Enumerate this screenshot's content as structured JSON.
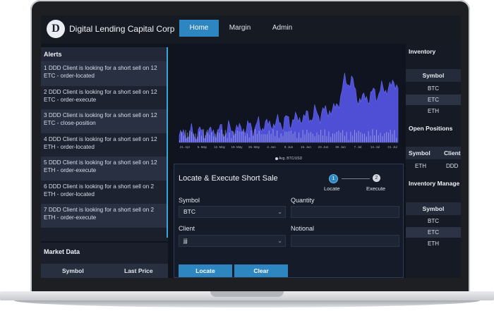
{
  "app": {
    "brand_initial": "D",
    "brand_name": "Digital Lending Capital Corp"
  },
  "nav": {
    "tabs": [
      {
        "label": "Home",
        "active": true
      },
      {
        "label": "Margin",
        "active": false
      },
      {
        "label": "Admin",
        "active": false
      }
    ]
  },
  "alerts": {
    "title": "Alerts",
    "items": [
      {
        "text": "1 DDD Client is looking for a short sell on 12 ETC - order-located"
      },
      {
        "text": "2 DDD Client is looking for a short sell on 12 ETC - order-execute"
      },
      {
        "text": "3 DDD Client is looking for a short sell on 12 ETC - close-position"
      },
      {
        "text": "4 DDD Client is looking for a short sell on 12 ETH - order-located"
      },
      {
        "text": "5 DDD Client is looking for a short sell on 12 ETH - order-execute"
      },
      {
        "text": "6 DDD Client is looking for a short sell on 2 ETH - order-located"
      },
      {
        "text": "7 DDD Client is looking for a short sell on 2 ETH - order-execute"
      }
    ]
  },
  "market_data": {
    "title": "Market Data",
    "columns": [
      "Symbol",
      "Last Price"
    ]
  },
  "chart": {
    "x_labels": [
      "21. Apr",
      "5. May",
      "12. May",
      "19. May",
      "26. May",
      "2. Jun",
      "9. Jun",
      "16. Jun",
      "23. Jun",
      "30. Jun",
      "7. Jul",
      "14. Jul",
      "21. Jul"
    ],
    "legend": "Avg. BTC/USD",
    "colors": {
      "area": "#4f4fd6",
      "volume": "#c9d1e6",
      "background": "#0f1420"
    }
  },
  "form": {
    "title": "Locate & Execute Short Sale",
    "steps": [
      {
        "number": "1",
        "label": "Locate"
      },
      {
        "number": "2",
        "label": "Execute"
      }
    ],
    "symbol_label": "Symbol",
    "symbol_value": "BTC",
    "quantity_label": "Quantity",
    "quantity_value": "",
    "client_label": "Client",
    "client_value": "jjj",
    "notional_label": "Notional",
    "notional_value": "",
    "locate_button": "Locate",
    "clear_button": "Clear"
  },
  "inventory": {
    "title": "Inventory",
    "column": "Symbol",
    "rows": [
      "BTC",
      "ETC",
      "ETH"
    ],
    "selected": "ETC"
  },
  "open_positions": {
    "title": "Open Positions",
    "columns": [
      "Symbol",
      "Client"
    ],
    "rows": [
      {
        "symbol": "ETH",
        "client": "DDD"
      }
    ]
  },
  "inventory_manager": {
    "title": "Inventory Manage",
    "column": "Symbol",
    "rows": [
      "BTC",
      "ETC",
      "ETH"
    ],
    "selected": "ETC"
  }
}
